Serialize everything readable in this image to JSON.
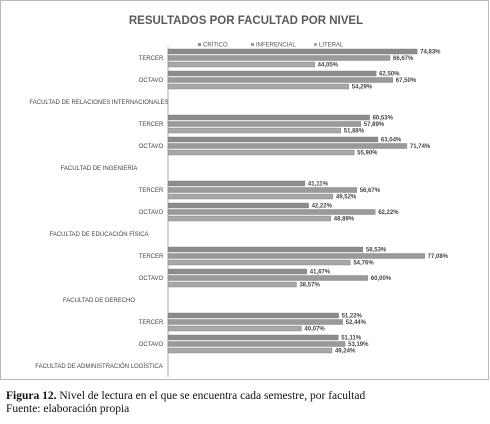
{
  "chart_data": {
    "type": "bar",
    "orientation": "horizontal",
    "title": "RESULTADOS POR FACULTAD POR NIVEL",
    "xlabel": "",
    "ylabel": "",
    "xlim": [
      0,
      100
    ],
    "grid": false,
    "legend_position": "top",
    "series": [
      {
        "name": "CRÍTICO",
        "color": "#8c8c8c"
      },
      {
        "name": "INFERENCIAL",
        "color": "#9a9a9a"
      },
      {
        "name": "LITERAL",
        "color": "#a8a8a8"
      }
    ],
    "rows": [
      {
        "label": "TERCER",
        "values": [
          74.83,
          66.67,
          44.05
        ],
        "value_labels": [
          "74,83%",
          "66,67%",
          "44,05%"
        ]
      },
      {
        "label": "OCTAVO",
        "values": [
          62.5,
          67.5,
          54.29
        ],
        "value_labels": [
          "62,50%",
          "67,50%",
          "54,29%"
        ]
      },
      {
        "label": "FACULTAD DE RELACIONES INTERNACIONALES",
        "group": true
      },
      {
        "label": "TERCER",
        "values": [
          60.53,
          57.89,
          51.88
        ],
        "value_labels": [
          "60,53%",
          "57,89%",
          "51,88%"
        ]
      },
      {
        "label": "OCTAVO",
        "values": [
          63.04,
          71.74,
          55.9
        ],
        "value_labels": [
          "63,04%",
          "71,74%",
          "55,90%"
        ]
      },
      {
        "label": "FACULTAD DE INGENIERÍA",
        "group": true
      },
      {
        "label": "TERCER",
        "values": [
          41.11,
          56.67,
          49.52
        ],
        "value_labels": [
          "41,11%",
          "56,67%",
          "49,52%"
        ]
      },
      {
        "label": "OCTAVO",
        "values": [
          42.22,
          62.22,
          48.89
        ],
        "value_labels": [
          "42,22%",
          "62,22%",
          "48,89%"
        ]
      },
      {
        "label": "FACULTAD DE EDUCACIÓN FÍSICA",
        "group": true
      },
      {
        "label": "TERCER",
        "values": [
          58.53,
          77.08,
          54.76
        ],
        "value_labels": [
          "58,53%",
          "77,08%",
          "54,76%"
        ]
      },
      {
        "label": "OCTAVO",
        "values": [
          41.67,
          60.0,
          38.57
        ],
        "value_labels": [
          "41,67%",
          "60,00%",
          "38,57%"
        ]
      },
      {
        "label": "FACULTAD DE DERECHO",
        "group": true
      },
      {
        "label": "TERCER",
        "values": [
          51.22,
          52.44,
          40.07
        ],
        "value_labels": [
          "51,22%",
          "52,44%",
          "40,07%"
        ]
      },
      {
        "label": "OCTAVO",
        "values": [
          51.11,
          53.19,
          49.24
        ],
        "value_labels": [
          "51,11%",
          "53,19%",
          "49,24%"
        ]
      },
      {
        "label": "FACULTAD DE ADMINISTRACIÓN LOGÍSTICA",
        "group": true
      }
    ]
  },
  "caption": {
    "figure_label": "Figura 12.",
    "figure_text": " Nivel de lectura en el que se encuentra cada semestre, por facultad",
    "source": "Fuente: elaboración propia"
  }
}
